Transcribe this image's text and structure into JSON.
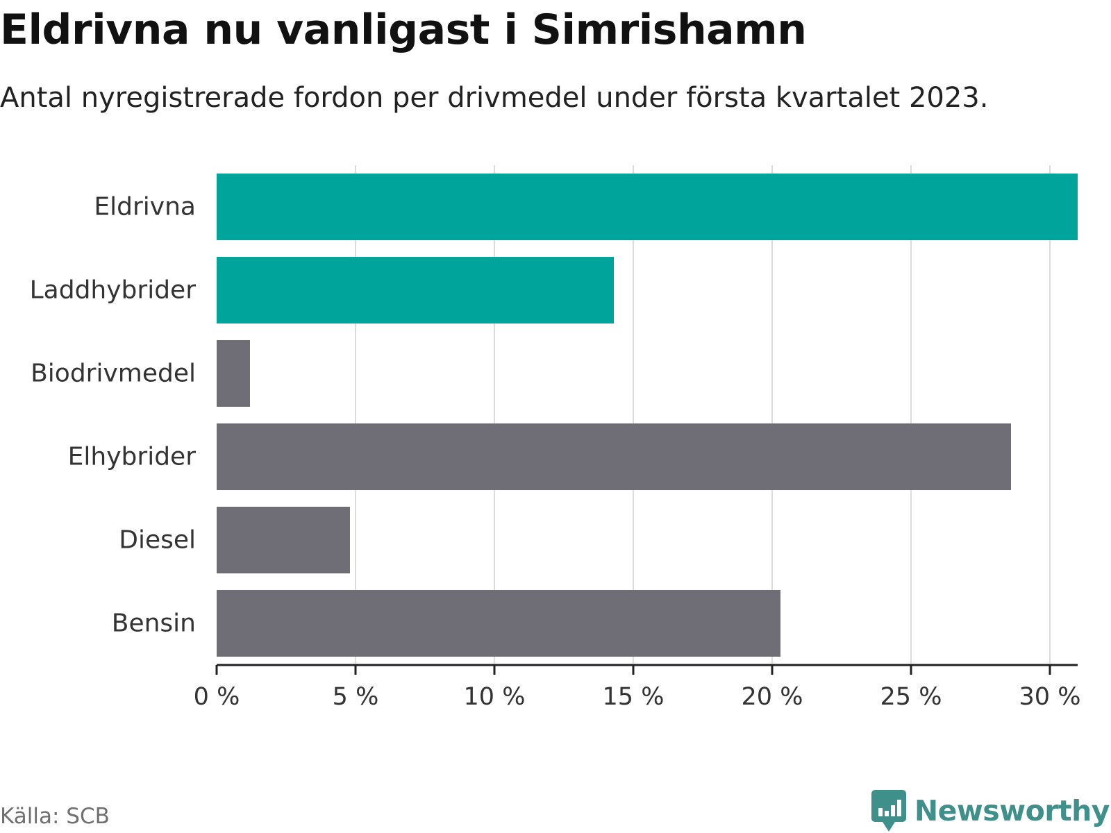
{
  "header": {
    "title": "Eldrivna nu vanligast i Simrishamn",
    "subtitle": "Antal nyregistrerade fordon per drivmedel under första kvartalet 2023."
  },
  "footer": {
    "source": "Källa: SCB",
    "brand": "Newsworthy",
    "brand_icon": "bar-chart-speech-bubble-icon"
  },
  "colors": {
    "highlight": "#00a49a",
    "default": "#6f6e77",
    "grid": "#dddddd",
    "axis": "#222222",
    "brand": "#3f8f8a"
  },
  "chart_data": {
    "type": "bar",
    "orientation": "horizontal",
    "categories": [
      "Eldrivna",
      "Laddhybrider",
      "Biodrivmedel",
      "Elhybrider",
      "Diesel",
      "Bensin"
    ],
    "values": [
      31.0,
      14.3,
      1.2,
      28.6,
      4.8,
      20.3
    ],
    "highlighted": [
      true,
      true,
      false,
      false,
      false,
      false
    ],
    "unit": "%",
    "xlim": [
      0,
      31
    ],
    "xticks": [
      0,
      5,
      10,
      15,
      20,
      25,
      30
    ],
    "xtick_labels": [
      "0 %",
      "5 %",
      "10 %",
      "15 %",
      "20 %",
      "25 %",
      "30 %"
    ],
    "grid": true,
    "legend": "none"
  }
}
